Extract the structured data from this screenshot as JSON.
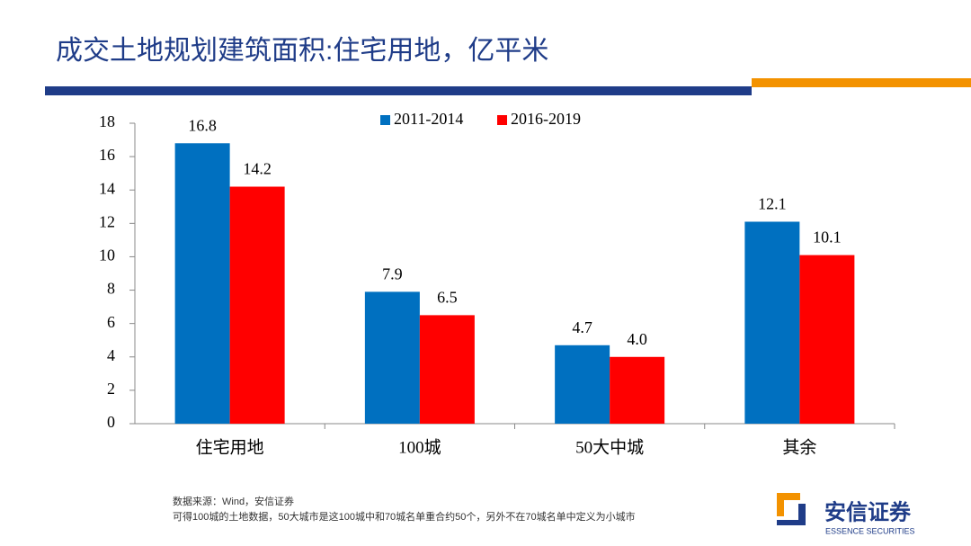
{
  "slide": {
    "title": "成交土地规划建筑面积:住宅用地，亿平米",
    "notes": [
      "数据来源：Wind，安信证券",
      "可得100城的土地数据，50大城市是这100城中和70城名单重合约50个，另外不在70城名单中定义为小城市"
    ],
    "logo": {
      "name": "安信证券",
      "subtitle": "ESSENCE SECURITIES"
    }
  },
  "chart_data": {
    "type": "bar",
    "categories": [
      "住宅用地",
      "100城",
      "50大中城",
      "其余"
    ],
    "series": [
      {
        "name": "2011-2014",
        "color": "#0070c0",
        "values": [
          16.8,
          7.9,
          4.7,
          12.1
        ]
      },
      {
        "name": "2016-2019",
        "color": "#ff0000",
        "values": [
          14.2,
          6.5,
          4.0,
          10.1
        ],
        "value_labels": [
          "14.2",
          "6.5",
          "4.0",
          "10.1"
        ]
      }
    ],
    "ylim": [
      0,
      18
    ],
    "yticks": [
      0,
      2,
      4,
      6,
      8,
      10,
      12,
      14,
      16,
      18
    ],
    "legend": "top"
  }
}
